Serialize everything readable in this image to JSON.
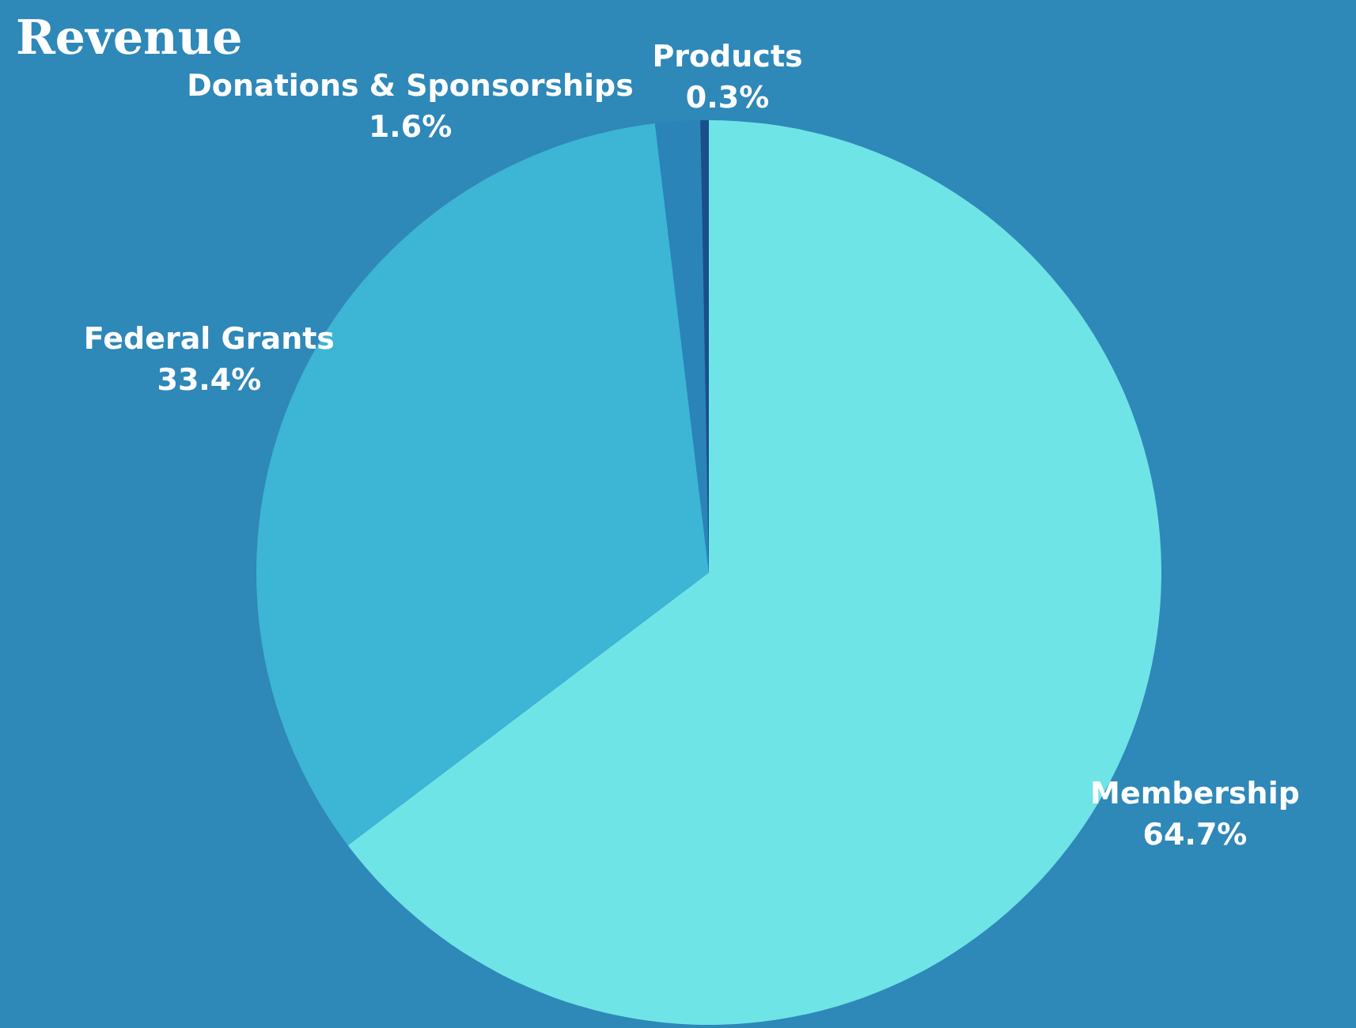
{
  "chart_data": {
    "type": "pie",
    "title": "Revenue",
    "categories": [
      "Membership",
      "Federal Grants",
      "Donations & Sponsorships",
      "Products"
    ],
    "values": [
      64.7,
      33.4,
      1.6,
      0.3
    ],
    "value_labels": [
      "64.7%",
      "33.4%",
      "1.6%",
      "0.3%"
    ],
    "colors": [
      "#6ee4e6",
      "#3db5d5",
      "#2a84b8",
      "#1a4f8a"
    ],
    "legend": false
  }
}
